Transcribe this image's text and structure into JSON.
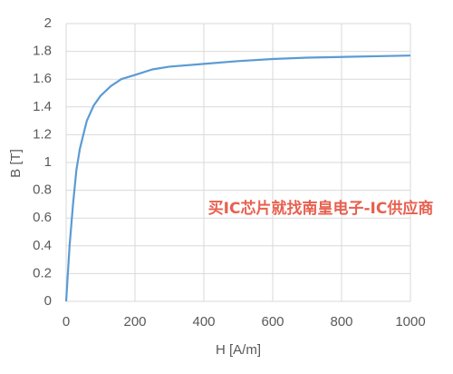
{
  "chart_data": {
    "type": "line",
    "x_label": "H [A/m]",
    "y_label": "B [T]",
    "annotation": "买IC芯片就找南皇电子-IC供应商",
    "x": [
      0,
      10,
      20,
      30,
      40,
      60,
      80,
      100,
      130,
      160,
      200,
      250,
      300,
      400,
      500,
      600,
      700,
      800,
      900,
      1000
    ],
    "series": [
      {
        "color": "#5b9bd5",
        "values": [
          0,
          0.4,
          0.7,
          0.95,
          1.1,
          1.3,
          1.41,
          1.48,
          1.55,
          1.6,
          1.63,
          1.67,
          1.69,
          1.71,
          1.73,
          1.745,
          1.755,
          1.76,
          1.765,
          1.77
        ]
      }
    ],
    "xlim": [
      0,
      1000
    ],
    "xticks": [
      0,
      200,
      400,
      600,
      800,
      1000
    ],
    "ylim": [
      0,
      2
    ],
    "yticks": [
      0,
      0.2,
      0.4,
      0.6,
      0.8,
      1,
      1.2,
      1.4,
      1.6,
      1.8,
      2
    ],
    "grid": true
  }
}
